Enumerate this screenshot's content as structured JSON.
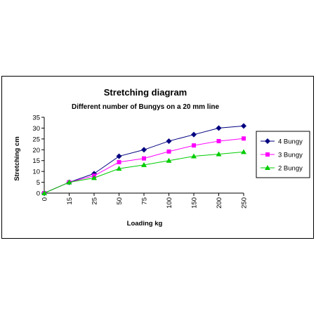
{
  "chart_data": {
    "type": "line",
    "title": "Stretching diagram",
    "subtitle": "Different number of Bungys on a 20 mm line",
    "xlabel": "Loading kg",
    "ylabel": "Stretching cm",
    "categories": [
      "0",
      "15",
      "25",
      "50",
      "75",
      "100",
      "150",
      "200",
      "250"
    ],
    "ylim": [
      0,
      35
    ],
    "yticks": [
      "0",
      "5",
      "10",
      "15",
      "20",
      "25",
      "30",
      "35"
    ],
    "grid": false,
    "legend_position": "right",
    "series": [
      {
        "name": "4 Bungy",
        "color": "#000080",
        "marker": "diamond",
        "values": [
          0,
          5,
          9,
          17,
          20,
          24,
          27,
          30,
          31
        ]
      },
      {
        "name": "3 Bungy",
        "color": "#ff00ff",
        "marker": "square",
        "values": [
          0,
          5,
          8,
          14.3,
          16,
          19.2,
          22,
          24,
          25.2
        ]
      },
      {
        "name": "2 Bungy",
        "color": "#00cc00",
        "marker": "triangle",
        "values": [
          0,
          5,
          7,
          11.3,
          13,
          15,
          17,
          18,
          19
        ]
      }
    ]
  }
}
